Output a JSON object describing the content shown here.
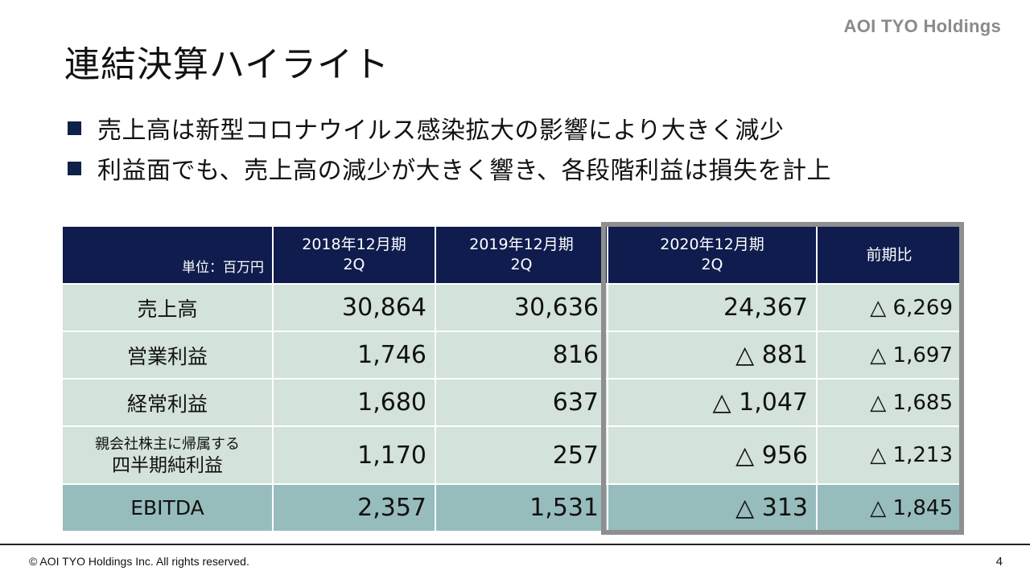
{
  "header": {
    "brand": "AOI TYO Holdings",
    "title": "連結決算ハイライト"
  },
  "bullets": [
    "売上高は新型コロナウイルス感染拡大の影響により大きく減少",
    "利益面でも、売上高の減少が大きく響き、各段階利益は損失を計上"
  ],
  "table": {
    "unit_label": "単位：百万円",
    "columns": [
      {
        "line1": "2018年12月期",
        "line2": "2Q"
      },
      {
        "line1": "2019年12月期",
        "line2": "2Q"
      },
      {
        "line1": "2020年12月期",
        "line2": "2Q"
      },
      {
        "line1": "前期比",
        "line2": ""
      }
    ],
    "rows": [
      {
        "label": "売上高",
        "values": [
          "30,864",
          "30,636",
          "24,367",
          "△ 6,269"
        ]
      },
      {
        "label": "営業利益",
        "values": [
          "1,746",
          "816",
          "△ 881",
          "△ 1,697"
        ]
      },
      {
        "label": "経常利益",
        "values": [
          "1,680",
          "637",
          "△ 1,047",
          "△ 1,685"
        ]
      },
      {
        "label_line1": "親会社株主に帰属する",
        "label_line2": "四半期純利益",
        "values": [
          "1,170",
          "257",
          "△ 956",
          "△ 1,213"
        ]
      },
      {
        "label": "EBITDA",
        "values": [
          "2,357",
          "1,531",
          "△ 313",
          "△ 1,845"
        ]
      }
    ]
  },
  "footer": {
    "copyright": "© AOI TYO Holdings Inc. All rights reserved.",
    "page_number": "4"
  },
  "colors": {
    "header_navy": "#0f1c4d",
    "row_light": "#d3e2da",
    "row_ebitda": "#97bcbc",
    "highlight_border": "#8f8f8f"
  }
}
